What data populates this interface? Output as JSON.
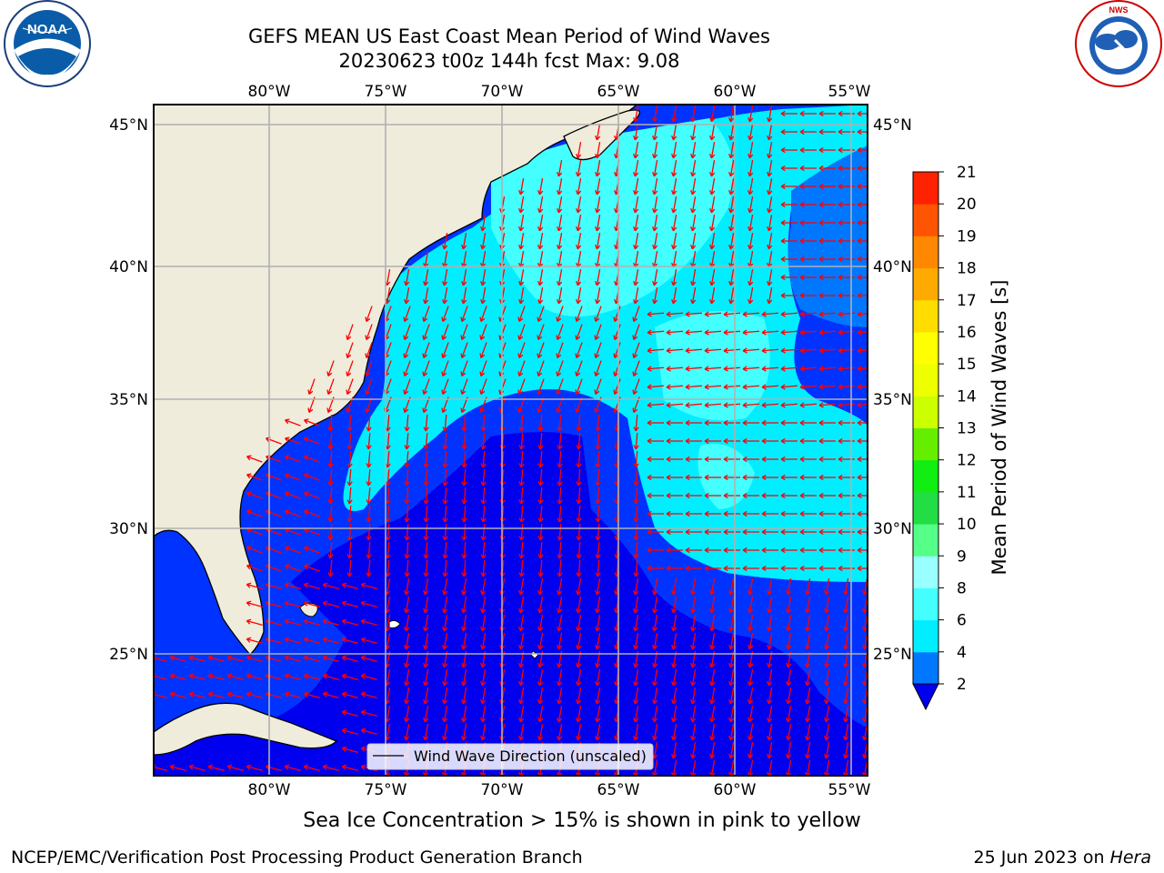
{
  "header": {
    "title_line1": "GEFS MEAN US East Coast Mean Period of Wind Waves",
    "title_line2": "20230623 t00z 144h fcst   Max: 9.08"
  },
  "logos": {
    "left": {
      "text": "NOAA",
      "ring_text": "NATIONAL OCEANIC AND ATMOSPHERIC ADMINISTRATION · U.S. DEPARTMENT OF COMMERCE"
    },
    "right": {
      "ring_text": "NATIONAL WEATHER SERVICE"
    }
  },
  "map": {
    "lon_labels": [
      "80°W",
      "75°W",
      "70°W",
      "65°W",
      "60°W",
      "55°W"
    ],
    "lat_labels": [
      "45°N",
      "40°N",
      "35°N",
      "30°N",
      "25°N"
    ],
    "legend_label": "Wind Wave Direction (unscaled)",
    "land_color": "#efecdc",
    "vector_color": "#ff0000"
  },
  "colorbar": {
    "label": "Mean Period of Wind Waves [s]",
    "ticks": [
      "2",
      "4",
      "6",
      "8",
      "9",
      "10",
      "11",
      "12",
      "13",
      "14",
      "15",
      "16",
      "17",
      "18",
      "19",
      "20",
      "21"
    ],
    "colors": [
      "#0000ee",
      "#0077ff",
      "#00eeff",
      "#44ffff",
      "#99ffff",
      "#55ff88",
      "#22dd44",
      "#11ee11",
      "#66ee00",
      "#ccff00",
      "#eeff00",
      "#ffff00",
      "#ffdd00",
      "#ffaa00",
      "#ff8800",
      "#ff5500",
      "#ff2200",
      "#ff0000"
    ]
  },
  "footer": {
    "ice_note": "Sea Ice Concentration > 15% is shown in pink to yellow",
    "credit": "NCEP/EMC/Verification Post Processing Product Generation Branch",
    "date": "25 Jun 2023 on ",
    "machine": "Hera"
  }
}
